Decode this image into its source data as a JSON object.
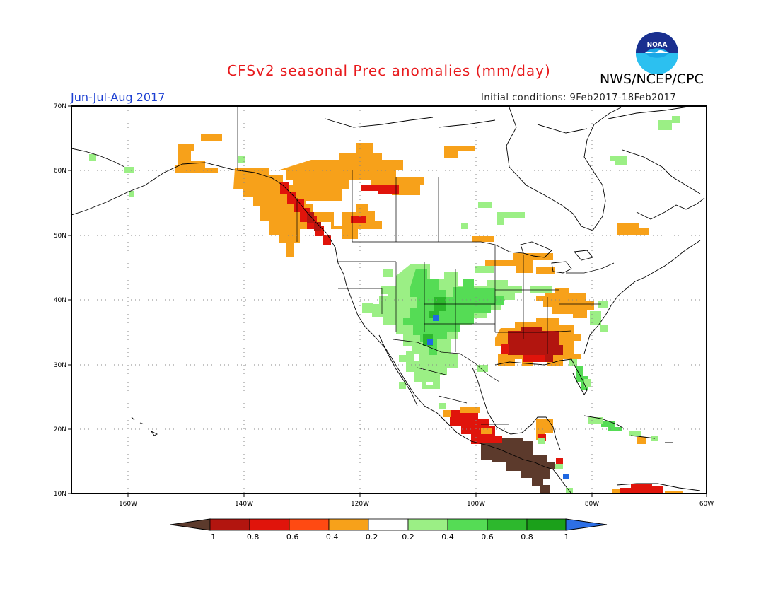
{
  "title": "CFSv2 seasonal Prec anomalies (mm/day)",
  "agency": "NWS/NCEP/CPC",
  "logo_text": "NOAA",
  "period": "Jun-Jul-Aug 2017",
  "initial_conditions": "Initial conditions: 9Feb2017-18Feb2017",
  "map": {
    "lon_range": [
      -172,
      -60
    ],
    "lat_range": [
      10,
      70
    ],
    "lat_labels": [
      "70N",
      "60N",
      "50N",
      "40N",
      "30N",
      "20N",
      "10N"
    ],
    "lon_labels": [
      "160W",
      "140W",
      "120W",
      "100W",
      "80W",
      "60W"
    ],
    "grid": true
  },
  "colorbar": {
    "labels": [
      "−1",
      "−0.8",
      "−0.6",
      "−0.4",
      "−0.2",
      "0.2",
      "0.4",
      "0.6",
      "0.8",
      "1"
    ],
    "colors": [
      "#8b2c05",
      "#b2150f",
      "#e0140b",
      "#ff4a12",
      "#f7a11a",
      "#ffffff",
      "#9bef85",
      "#55dc55",
      "#2db82d",
      "#1ba01a",
      "#1f68e2"
    ],
    "low_arrow_color": "#5c3a2c",
    "high_arrow_color": "#2d6fe6"
  },
  "anomaly_colors": {
    "brown": "#5c3a2c",
    "darkred": "#b2150f",
    "red": "#e0140b",
    "orange": "#f7a11a",
    "lightgreen": "#9bef85",
    "green": "#55dc55",
    "darkgreen": "#2db82d",
    "blue": "#1f68e2"
  },
  "anomaly_regions": [
    {
      "name": "alaska-south-coast-dry",
      "category": "orange"
    },
    {
      "name": "canadian-rockies-dry",
      "category": "orange"
    },
    {
      "name": "northwest-canada-dry",
      "category": "orange"
    },
    {
      "name": "bc-coast-dry",
      "category": "red"
    },
    {
      "name": "hudson-bay-east-dry",
      "category": "orange"
    },
    {
      "name": "great-lakes-dry",
      "category": "orange"
    },
    {
      "name": "mid-atlantic-dry",
      "category": "orange"
    },
    {
      "name": "southeast-us-dry",
      "category": "orange"
    },
    {
      "name": "southeast-us-core-dry",
      "category": "darkred"
    },
    {
      "name": "southwest-us-wet",
      "category": "lightgreen"
    },
    {
      "name": "rockies-wet",
      "category": "green"
    },
    {
      "name": "four-corners-wet",
      "category": "darkgreen"
    },
    {
      "name": "colorado-wet-max",
      "category": "blue"
    },
    {
      "name": "great-plains-wet",
      "category": "green"
    },
    {
      "name": "mexico-west-wet",
      "category": "lightgreen"
    },
    {
      "name": "florida-wet",
      "category": "green"
    },
    {
      "name": "carolinas-wet",
      "category": "lightgreen"
    },
    {
      "name": "mexico-south-dry",
      "category": "red"
    },
    {
      "name": "central-america-dry",
      "category": "brown"
    },
    {
      "name": "yucatan-dry",
      "category": "orange"
    },
    {
      "name": "caribbean-south-dry",
      "category": "red"
    },
    {
      "name": "cuba-wet",
      "category": "green"
    },
    {
      "name": "quebec-wet",
      "category": "lightgreen"
    },
    {
      "name": "canada-central-wet",
      "category": "lightgreen"
    }
  ]
}
